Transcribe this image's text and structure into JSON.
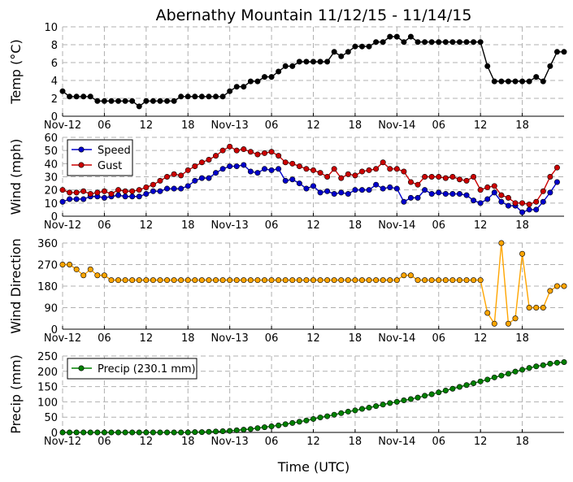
{
  "title": "Abernathy Mountain 11/12/15 - 11/14/15",
  "xlabel": "Time (UTC)",
  "x_tick_labels": [
    "Nov-12",
    "06",
    "12",
    "18",
    "Nov-13",
    "06",
    "12",
    "18",
    "Nov-14",
    "06",
    "12",
    "18"
  ],
  "x_tick_hours": [
    0,
    6,
    12,
    18,
    24,
    30,
    36,
    42,
    48,
    54,
    60,
    66
  ],
  "x_range_hours": [
    0,
    72
  ],
  "colors": {
    "temp": "#000000",
    "speed": "#0000cc",
    "gust": "#cc0000",
    "direction": "#ffa500",
    "precip": "#008000"
  },
  "chart_data": [
    {
      "type": "line",
      "ylabel": "Temp (°C)",
      "ylim": [
        0,
        10
      ],
      "yticks": [
        0,
        2,
        4,
        6,
        8,
        10
      ],
      "grid": true,
      "series": [
        {
          "name": "Temp",
          "key": "temp",
          "values": [
            2.8,
            2.2,
            2.2,
            2.2,
            2.2,
            1.7,
            1.7,
            1.7,
            1.7,
            1.7,
            1.7,
            1.1,
            1.7,
            1.7,
            1.7,
            1.7,
            1.7,
            2.2,
            2.2,
            2.2,
            2.2,
            2.2,
            2.2,
            2.2,
            2.8,
            3.3,
            3.3,
            3.9,
            3.9,
            4.4,
            4.4,
            5.0,
            5.6,
            5.6,
            6.1,
            6.1,
            6.1,
            6.1,
            6.1,
            7.2,
            6.7,
            7.2,
            7.8,
            7.8,
            7.8,
            8.3,
            8.3,
            8.9,
            8.9,
            8.3,
            8.9,
            8.3,
            8.3,
            8.3,
            8.3,
            8.3,
            8.3,
            8.3,
            8.3,
            8.3,
            8.3,
            5.6,
            3.9,
            3.9,
            3.9,
            3.9,
            3.9,
            3.9,
            4.4,
            3.9,
            5.6,
            7.2,
            7.2
          ]
        }
      ]
    },
    {
      "type": "line",
      "ylabel": "Wind (mph)",
      "ylim": [
        0,
        60
      ],
      "yticks": [
        0,
        10,
        20,
        30,
        40,
        50,
        60
      ],
      "grid": true,
      "legend": "top-left",
      "series": [
        {
          "name": "Speed",
          "key": "speed",
          "values": [
            11,
            13,
            13,
            13,
            15,
            15,
            14,
            15,
            16,
            15,
            15,
            15,
            17,
            19,
            19,
            21,
            21,
            21,
            23,
            27,
            29,
            29,
            33,
            36,
            38,
            38,
            39,
            34,
            33,
            36,
            35,
            36,
            27,
            28,
            25,
            21,
            23,
            18,
            19,
            17,
            18,
            17,
            20,
            20,
            20,
            24,
            21,
            22,
            21,
            11,
            14,
            14,
            20,
            17,
            18,
            17,
            17,
            17,
            16,
            12,
            10,
            13,
            18,
            11,
            8,
            8,
            3,
            5,
            5,
            11,
            18,
            26
          ]
        },
        {
          "name": "Gust",
          "key": "gust",
          "values": [
            20,
            18,
            18,
            19,
            17,
            18,
            19,
            17,
            20,
            19,
            19,
            20,
            22,
            24,
            27,
            30,
            32,
            31,
            35,
            38,
            41,
            43,
            46,
            50,
            53,
            50,
            51,
            49,
            47,
            48,
            49,
            46,
            41,
            40,
            38,
            36,
            35,
            33,
            30,
            36,
            29,
            32,
            31,
            34,
            35,
            36,
            41,
            36,
            36,
            34,
            26,
            24,
            30,
            30,
            30,
            29,
            30,
            28,
            27,
            30,
            20,
            22,
            23,
            16,
            14,
            10,
            10,
            9,
            11,
            19,
            30,
            37
          ]
        }
      ]
    },
    {
      "type": "line",
      "ylabel": "Wind Direction",
      "ylim": [
        0,
        360
      ],
      "yticks": [
        0,
        90,
        180,
        270,
        360
      ],
      "grid": true,
      "series": [
        {
          "name": "Direction",
          "key": "direction",
          "values": [
            270,
            270,
            250,
            225,
            250,
            225,
            225,
            205,
            205,
            205,
            205,
            205,
            205,
            205,
            205,
            205,
            205,
            205,
            205,
            205,
            205,
            205,
            205,
            205,
            205,
            205,
            205,
            205,
            205,
            205,
            205,
            205,
            205,
            205,
            205,
            205,
            205,
            205,
            205,
            205,
            205,
            205,
            205,
            205,
            205,
            205,
            205,
            205,
            205,
            225,
            225,
            205,
            205,
            205,
            205,
            205,
            205,
            205,
            205,
            205,
            205,
            68,
            23,
            360,
            23,
            45,
            315,
            90,
            90,
            90,
            160,
            180,
            180
          ]
        }
      ]
    },
    {
      "type": "line",
      "ylabel": "Precip (mm)",
      "ylim": [
        0,
        250
      ],
      "yticks": [
        0,
        50,
        100,
        150,
        200,
        250
      ],
      "grid": true,
      "legend": "top-left",
      "series": [
        {
          "name": "Precip (230.1 mm)",
          "key": "precip",
          "values": [
            0,
            0,
            0,
            0,
            0,
            0,
            0,
            0,
            0,
            0,
            0,
            0,
            0,
            0,
            0,
            0,
            0,
            0,
            0,
            1,
            1,
            2,
            3,
            4,
            5,
            7,
            9,
            11,
            14,
            17,
            20,
            23,
            27,
            31,
            35,
            39,
            44,
            49,
            53,
            58,
            63,
            68,
            72,
            77,
            81,
            86,
            91,
            96,
            100,
            105,
            109,
            114,
            120,
            125,
            131,
            137,
            143,
            149,
            155,
            161,
            167,
            173,
            180,
            186,
            192,
            199,
            205,
            211,
            216,
            220,
            225,
            228,
            230.1
          ]
        }
      ]
    }
  ]
}
